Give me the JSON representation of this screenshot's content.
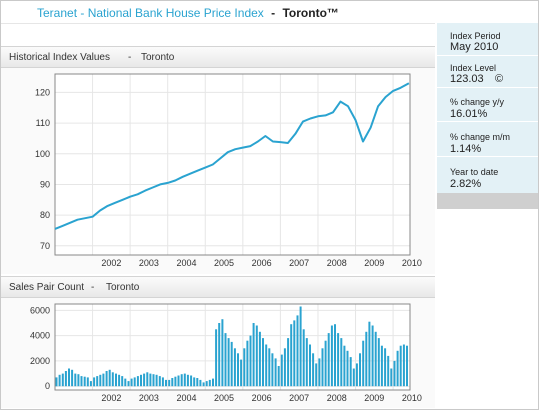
{
  "header": {
    "title": "Teranet - National Bank House Price Index",
    "separator": "-",
    "city": "Toronto™"
  },
  "sidebar": {
    "items": [
      {
        "label": "Index Period",
        "value": "May 2010"
      },
      {
        "label": "Index Level",
        "value": "123.03",
        "icon": "copyright-icon"
      },
      {
        "label": "% change y/y",
        "value": "16.01%"
      },
      {
        "label": "% change m/m",
        "value": "1.14%"
      },
      {
        "label": "Year to date",
        "value": "2.82%"
      }
    ]
  },
  "panels": {
    "index": {
      "title": "Historical Index Values",
      "separator": "-",
      "city": "Toronto"
    },
    "sales": {
      "title": "Sales Pair Count",
      "separator": "-",
      "city": "Toronto"
    }
  },
  "colors": {
    "series": "#2aa3d0",
    "grid": "#e6e6e6",
    "axis": "#888888"
  },
  "chart_data": [
    {
      "type": "line",
      "title": "Historical Index Values - Toronto",
      "xlabel": "",
      "ylabel": "",
      "xlim": [
        2001.0,
        2010.45
      ],
      "ylim": [
        67,
        126
      ],
      "y_ticks": [
        70,
        80,
        90,
        100,
        110,
        120
      ],
      "x_ticks": [
        "2002",
        "2003",
        "2004",
        "2005",
        "2006",
        "2007",
        "2008",
        "2009",
        "2010"
      ],
      "grid": true,
      "series": [
        {
          "name": "",
          "x": [
            2001.0,
            2001.2,
            2001.4,
            2001.6,
            2001.8,
            2002.0,
            2002.2,
            2002.4,
            2002.6,
            2002.8,
            2003.0,
            2003.2,
            2003.4,
            2003.6,
            2003.8,
            2004.0,
            2004.2,
            2004.4,
            2004.6,
            2004.8,
            2005.0,
            2005.2,
            2005.4,
            2005.6,
            2005.8,
            2006.0,
            2006.2,
            2006.4,
            2006.6,
            2006.8,
            2007.0,
            2007.2,
            2007.4,
            2007.6,
            2007.8,
            2008.0,
            2008.2,
            2008.4,
            2008.6,
            2008.8,
            2009.0,
            2009.2,
            2009.4,
            2009.6,
            2009.8,
            2010.0,
            2010.2,
            2010.42
          ],
          "y": [
            75.5,
            76.5,
            77.5,
            78.5,
            79.0,
            79.5,
            81.5,
            83.0,
            84.0,
            85.0,
            86.0,
            86.8,
            88.0,
            89.0,
            90.0,
            90.5,
            91.3,
            92.5,
            93.5,
            94.5,
            95.5,
            96.5,
            98.5,
            100.5,
            101.5,
            102.0,
            102.5,
            104.0,
            105.8,
            104.0,
            103.8,
            103.5,
            106.5,
            110.5,
            111.5,
            112.2,
            112.5,
            113.5,
            117.0,
            115.5,
            111.0,
            104.0,
            108.5,
            115.5,
            118.5,
            120.5,
            121.5,
            123.0
          ]
        }
      ]
    },
    {
      "type": "bar",
      "title": "Sales Pair Count - Toronto",
      "xlabel": "",
      "ylabel": "",
      "xlim": [
        2001.0,
        2010.45
      ],
      "ylim": [
        -300,
        6500
      ],
      "y_ticks": [
        0,
        2000,
        4000,
        6000
      ],
      "x_ticks": [
        "2002",
        "2003",
        "2004",
        "2005",
        "2006",
        "2007",
        "2008",
        "2009",
        "2010"
      ],
      "grid": true,
      "start": 2001.04,
      "step": 0.0833,
      "values": [
        700,
        900,
        1000,
        1200,
        1400,
        1300,
        1000,
        950,
        800,
        750,
        700,
        400,
        700,
        800,
        900,
        1000,
        1200,
        1300,
        1100,
        1000,
        900,
        800,
        600,
        400,
        600,
        700,
        800,
        900,
        1000,
        1100,
        1000,
        950,
        900,
        800,
        700,
        500,
        500,
        650,
        750,
        850,
        950,
        1000,
        900,
        850,
        700,
        650,
        500,
        300,
        400,
        500,
        600,
        4500,
        5000,
        5300,
        4200,
        3800,
        3500,
        3000,
        2600,
        2100,
        3000,
        3600,
        4000,
        5000,
        4800,
        4300,
        3800,
        3300,
        3000,
        2600,
        2200,
        1600,
        2500,
        3000,
        3800,
        4900,
        5200,
        5600,
        6300,
        4500,
        3800,
        3300,
        2600,
        1800,
        2200,
        3000,
        3600,
        4200,
        4800,
        4900,
        4200,
        3800,
        3200,
        2800,
        2300,
        1400,
        1800,
        2600,
        3600,
        4300,
        5100,
        4800,
        4300,
        3800,
        3200,
        3000,
        2400,
        1400,
        2000,
        2800,
        3200,
        3300,
        3200
      ]
    }
  ]
}
